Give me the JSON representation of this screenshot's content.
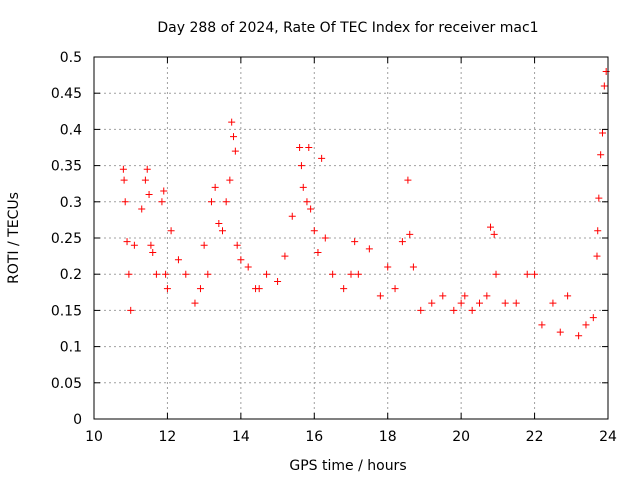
{
  "chart_data": {
    "type": "scatter",
    "title": "Day 288 of 2024, Rate Of TEC Index for receiver mac1",
    "xlabel": "GPS time / hours",
    "ylabel": "ROTI / TECUs",
    "xlim": [
      10,
      24
    ],
    "ylim": [
      0,
      0.5
    ],
    "xticks": [
      10,
      12,
      14,
      16,
      18,
      20,
      22,
      24
    ],
    "xtick_labels": [
      "10",
      "12",
      "14",
      "16",
      "18",
      "20",
      "22",
      "24"
    ],
    "yticks": [
      0,
      0.05,
      0.1,
      0.15,
      0.2,
      0.25,
      0.3,
      0.35,
      0.4,
      0.45,
      0.5
    ],
    "ytick_labels": [
      "0",
      "0.05",
      "0.1",
      "0.15",
      "0.2",
      "0.25",
      "0.3",
      "0.35",
      "0.4",
      "0.45",
      "0.5"
    ],
    "grid": true,
    "marker": "+",
    "color": "#ff0000",
    "series": [
      {
        "name": "ROTI",
        "x": [
          10.8,
          10.82,
          10.85,
          10.9,
          10.95,
          11.0,
          11.1,
          11.3,
          11.4,
          11.45,
          11.5,
          11.55,
          11.6,
          11.7,
          11.85,
          11.9,
          11.95,
          12.0,
          12.1,
          12.3,
          12.5,
          12.75,
          12.9,
          13.0,
          13.1,
          13.2,
          13.3,
          13.4,
          13.5,
          13.6,
          13.7,
          13.75,
          13.8,
          13.85,
          13.9,
          14.0,
          14.2,
          14.4,
          14.5,
          14.7,
          15.0,
          15.2,
          15.4,
          15.6,
          15.65,
          15.7,
          15.8,
          15.85,
          15.9,
          16.0,
          16.1,
          16.2,
          16.3,
          16.5,
          16.8,
          17.0,
          17.1,
          17.2,
          17.5,
          17.8,
          18.0,
          18.2,
          18.4,
          18.55,
          18.6,
          18.7,
          18.9,
          19.2,
          19.5,
          19.8,
          20.0,
          20.1,
          20.3,
          20.5,
          20.7,
          20.8,
          20.9,
          20.95,
          21.2,
          21.5,
          21.8,
          22.0,
          22.2,
          22.5,
          22.7,
          22.9,
          23.2,
          23.4,
          23.6,
          23.7,
          23.72,
          23.75,
          23.8,
          23.85,
          23.9,
          23.95
        ],
        "y": [
          0.345,
          0.33,
          0.3,
          0.245,
          0.2,
          0.15,
          0.24,
          0.29,
          0.33,
          0.345,
          0.31,
          0.24,
          0.23,
          0.2,
          0.3,
          0.315,
          0.2,
          0.18,
          0.26,
          0.22,
          0.2,
          0.16,
          0.18,
          0.24,
          0.2,
          0.3,
          0.32,
          0.27,
          0.26,
          0.3,
          0.33,
          0.41,
          0.39,
          0.37,
          0.24,
          0.22,
          0.21,
          0.18,
          0.18,
          0.2,
          0.19,
          0.225,
          0.28,
          0.375,
          0.35,
          0.32,
          0.3,
          0.375,
          0.29,
          0.26,
          0.23,
          0.36,
          0.25,
          0.2,
          0.18,
          0.2,
          0.245,
          0.2,
          0.235,
          0.17,
          0.21,
          0.18,
          0.245,
          0.33,
          0.255,
          0.21,
          0.15,
          0.16,
          0.17,
          0.15,
          0.16,
          0.17,
          0.15,
          0.16,
          0.17,
          0.265,
          0.255,
          0.2,
          0.16,
          0.16,
          0.2,
          0.2,
          0.13,
          0.16,
          0.12,
          0.17,
          0.115,
          0.13,
          0.14,
          0.225,
          0.26,
          0.305,
          0.365,
          0.395,
          0.46,
          0.48
        ]
      }
    ]
  }
}
